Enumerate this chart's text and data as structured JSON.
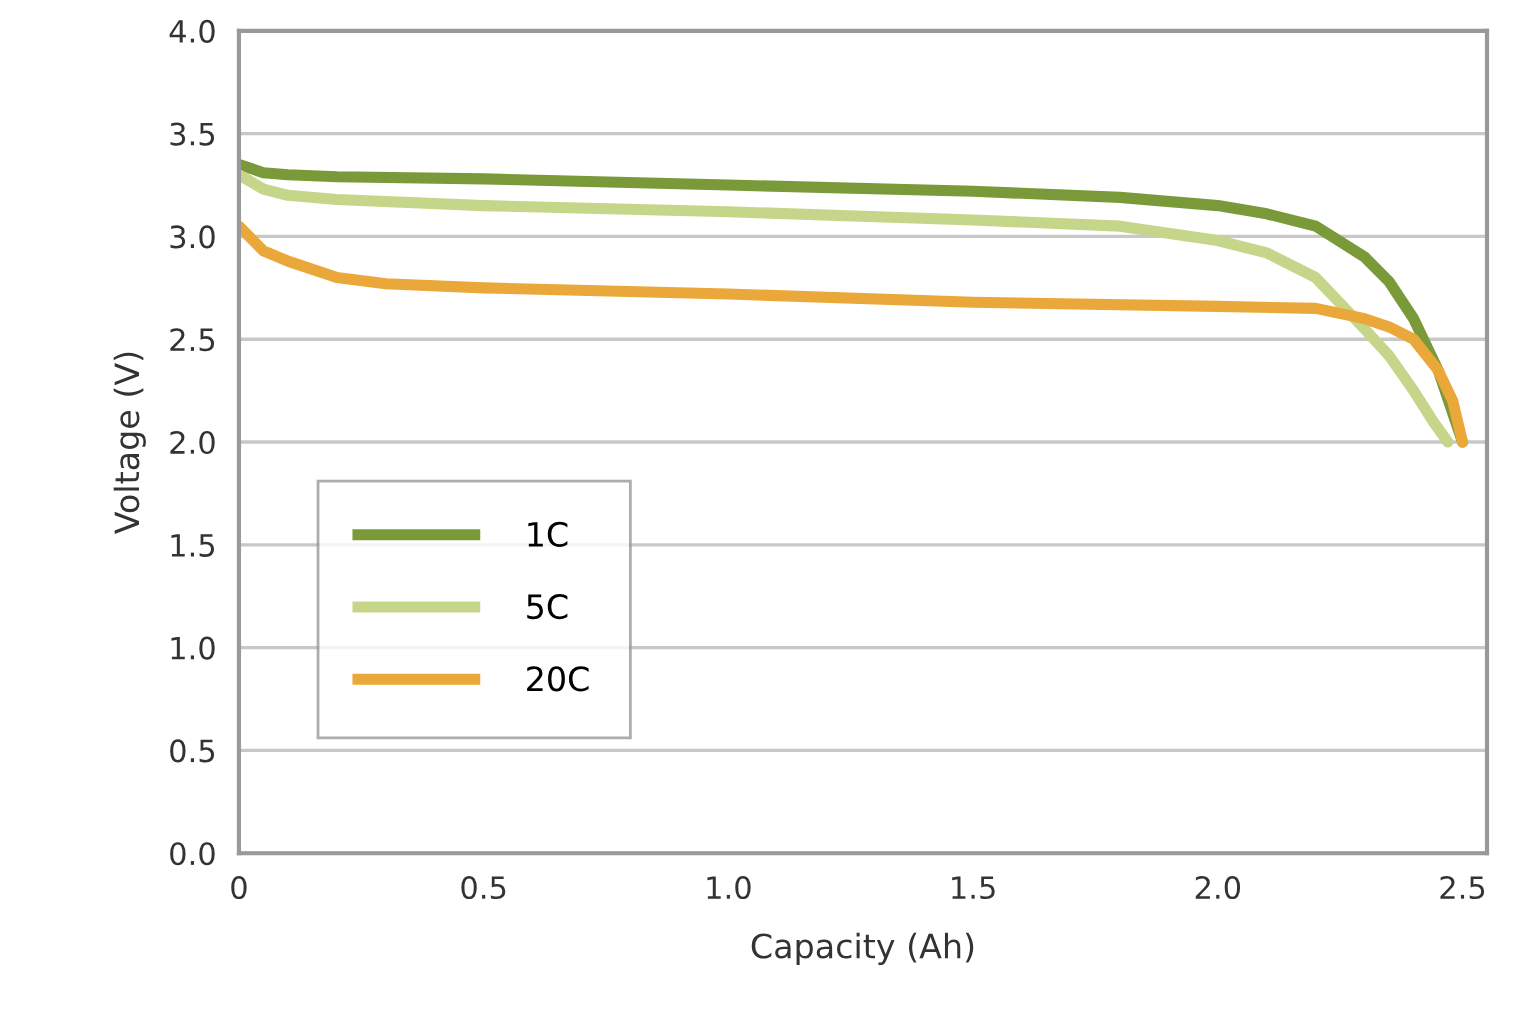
{
  "chart_data": {
    "type": "line",
    "xlabel": "Capacity (Ah)",
    "ylabel": "Voltage (V)",
    "xlim": [
      0,
      2.55
    ],
    "xticks": [
      0,
      0.5,
      {
        "value": 1,
        "label": "1.0"
      },
      1.5,
      {
        "value": 2,
        "label": "2.0"
      },
      2.5
    ],
    "ylim": [
      0,
      4
    ],
    "yticks": [
      {
        "value": 0,
        "label": "0.0"
      },
      0.5,
      {
        "value": 1,
        "label": "1.0"
      },
      1.5,
      {
        "value": 2,
        "label": "2.0"
      },
      2.5,
      {
        "value": 3,
        "label": "3.0"
      },
      3.5,
      {
        "value": 4,
        "label": "4.0"
      }
    ],
    "grid": "y",
    "legend": "bottom left",
    "marker": "none",
    "line_style": "solid",
    "series": [
      {
        "name": "1C",
        "color": "#7a9a3a",
        "x": [
          0,
          0.05,
          0.1,
          0.2,
          0.5,
          1.0,
          1.5,
          1.8,
          2.0,
          2.1,
          2.2,
          2.3,
          2.35,
          2.4,
          2.45,
          2.5
        ],
        "values": [
          3.35,
          3.31,
          3.3,
          3.29,
          3.28,
          3.25,
          3.22,
          3.19,
          3.15,
          3.11,
          3.05,
          2.9,
          2.78,
          2.6,
          2.35,
          2.0
        ]
      },
      {
        "name": "5C",
        "color": "#c5d68a",
        "x": [
          0,
          0.05,
          0.1,
          0.2,
          0.5,
          1.0,
          1.5,
          1.8,
          2.0,
          2.1,
          2.2,
          2.3,
          2.35,
          2.4,
          2.44,
          2.47
        ],
        "values": [
          3.3,
          3.23,
          3.2,
          3.18,
          3.15,
          3.12,
          3.08,
          3.05,
          2.98,
          2.92,
          2.8,
          2.55,
          2.42,
          2.25,
          2.1,
          2.0
        ]
      },
      {
        "name": "20C",
        "color": "#eba83a",
        "x": [
          0,
          0.05,
          0.1,
          0.2,
          0.3,
          0.5,
          1.0,
          1.5,
          2.0,
          2.2,
          2.3,
          2.35,
          2.4,
          2.45,
          2.48,
          2.5
        ],
        "values": [
          3.05,
          2.93,
          2.88,
          2.8,
          2.77,
          2.75,
          2.72,
          2.68,
          2.66,
          2.65,
          2.6,
          2.56,
          2.5,
          2.35,
          2.2,
          2.0
        ]
      }
    ]
  }
}
